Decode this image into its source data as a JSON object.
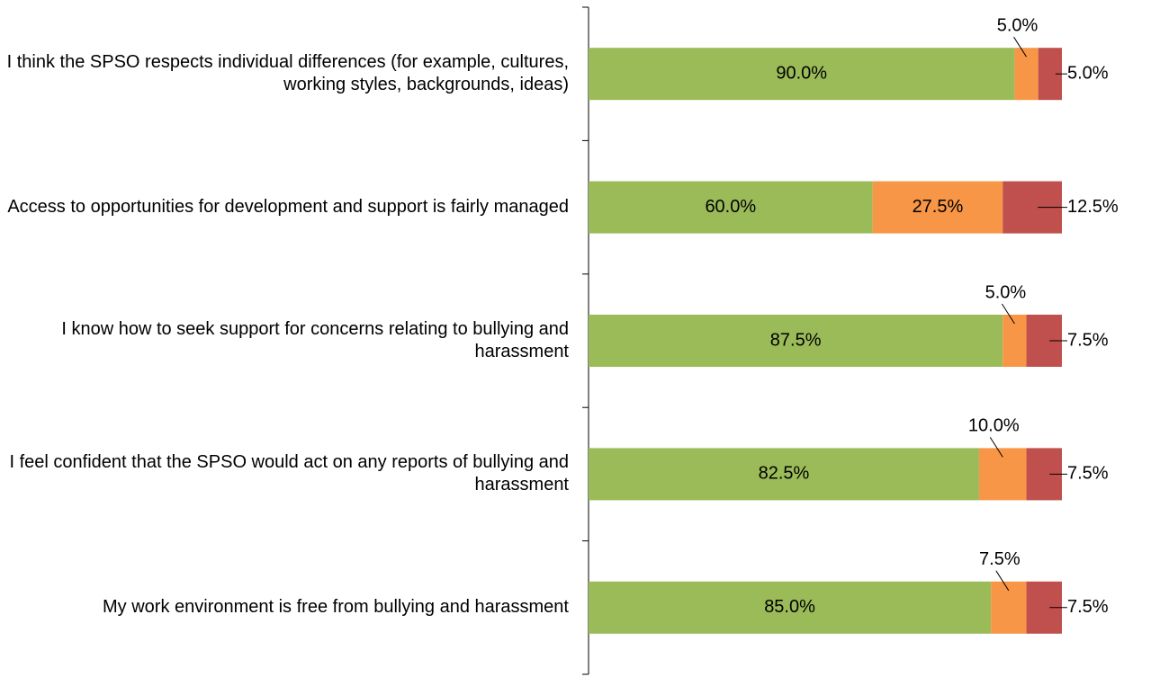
{
  "chart_data": {
    "type": "stacked-bar-horizontal",
    "categories": [
      "I think the SPSO respects individual differences (for example, cultures, working styles, backgrounds, ideas)",
      "Access to opportunities for development and support is fairly managed",
      "I know how to seek support for concerns relating to bullying and harassment",
      "I feel confident that the SPSO would act on any reports of bullying and harassment",
      "My work environment is free from bullying and harassment"
    ],
    "xlim": [
      0,
      100
    ],
    "series": [
      {
        "color": "#9bbb59",
        "values": [
          90,
          60,
          87.5,
          82.5,
          85
        ],
        "value_labels": [
          "90.0%",
          "60.0%",
          "87.5%",
          "82.5%",
          "85.0%"
        ]
      },
      {
        "color": "#f79646",
        "values": [
          5,
          27.5,
          5,
          10,
          7.5
        ],
        "value_labels": [
          "5.0%",
          "27.5%",
          "5.0%",
          "10.0%",
          "7.5%"
        ]
      },
      {
        "color": "#c0504d",
        "values": [
          5,
          12.5,
          7.5,
          7.5,
          7.5
        ],
        "value_labels": [
          "5.0%",
          "12.5%",
          "7.5%",
          "7.5%",
          "7.5%"
        ]
      }
    ]
  }
}
